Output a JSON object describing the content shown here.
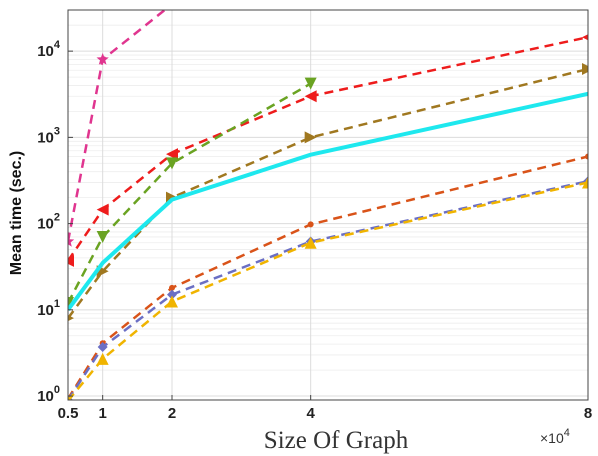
{
  "chart_data": {
    "type": "line",
    "x_scale": "linear",
    "y_scale": "log",
    "xlabel": "Size Of Graph",
    "ylabel": "Mean time (sec.)",
    "x_multiplier_text": "×10",
    "x_multiplier_exp": "4",
    "xlim": [
      0.5,
      8
    ],
    "ylim": [
      0.9,
      30000
    ],
    "grid": true,
    "x_ticks": [
      0.5,
      1,
      2,
      4,
      8
    ],
    "x_tick_labels": [
      "0.5",
      "1",
      "2",
      "4",
      "8"
    ],
    "y_ticks": [
      1,
      10,
      100,
      1000,
      10000
    ],
    "y_tick_base": "10",
    "y_tick_exponents": [
      "0",
      "1",
      "2",
      "3",
      "4"
    ],
    "series": [
      {
        "color": "#e0358f",
        "marker": "star",
        "dashed": true,
        "width": 2.5,
        "points": [
          [
            0.5,
            62
          ],
          [
            1,
            8000
          ],
          [
            2,
            35000
          ]
        ]
      },
      {
        "color": "#ee1c1c",
        "marker": "tri-left",
        "dashed": true,
        "width": 2.5,
        "points": [
          [
            0.5,
            37
          ],
          [
            1,
            145
          ],
          [
            2,
            640
          ],
          [
            4,
            3000
          ],
          [
            8,
            14500
          ]
        ]
      },
      {
        "color": "#6aa322",
        "marker": "tri-down",
        "dashed": true,
        "width": 2.5,
        "points": [
          [
            0.5,
            12
          ],
          [
            1,
            70
          ],
          [
            2,
            500
          ],
          [
            4,
            4200
          ]
        ]
      },
      {
        "color": "#a07820",
        "marker": "tri-right",
        "dashed": true,
        "width": 2.5,
        "points": [
          [
            0.5,
            8
          ],
          [
            1,
            28
          ],
          [
            2,
            200
          ],
          [
            4,
            1000
          ],
          [
            8,
            6200
          ]
        ]
      },
      {
        "color": "#1ee8ee",
        "marker": "none",
        "dashed": false,
        "width": 4,
        "points": [
          [
            0.5,
            10
          ],
          [
            1,
            35
          ],
          [
            2,
            190
          ],
          [
            4,
            630
          ],
          [
            8,
            3200
          ]
        ]
      },
      {
        "color": "#d95319",
        "marker": "dot",
        "dashed": true,
        "width": 2.5,
        "points": [
          [
            0.5,
            0.93
          ],
          [
            1,
            4.1
          ],
          [
            2,
            18
          ],
          [
            4,
            98
          ],
          [
            8,
            600
          ]
        ]
      },
      {
        "color": "#6b6fc4",
        "marker": "diamond",
        "dashed": true,
        "width": 2.5,
        "points": [
          [
            0.5,
            0.9
          ],
          [
            1,
            3.7
          ],
          [
            2,
            15
          ],
          [
            4,
            62
          ],
          [
            8,
            310
          ]
        ]
      },
      {
        "color": "#f0b400",
        "marker": "tri-up",
        "dashed": true,
        "width": 2.5,
        "points": [
          [
            0.5,
            0.88
          ],
          [
            1,
            2.7
          ],
          [
            2,
            12.5
          ],
          [
            4,
            60
          ],
          [
            8,
            300
          ]
        ]
      }
    ]
  }
}
